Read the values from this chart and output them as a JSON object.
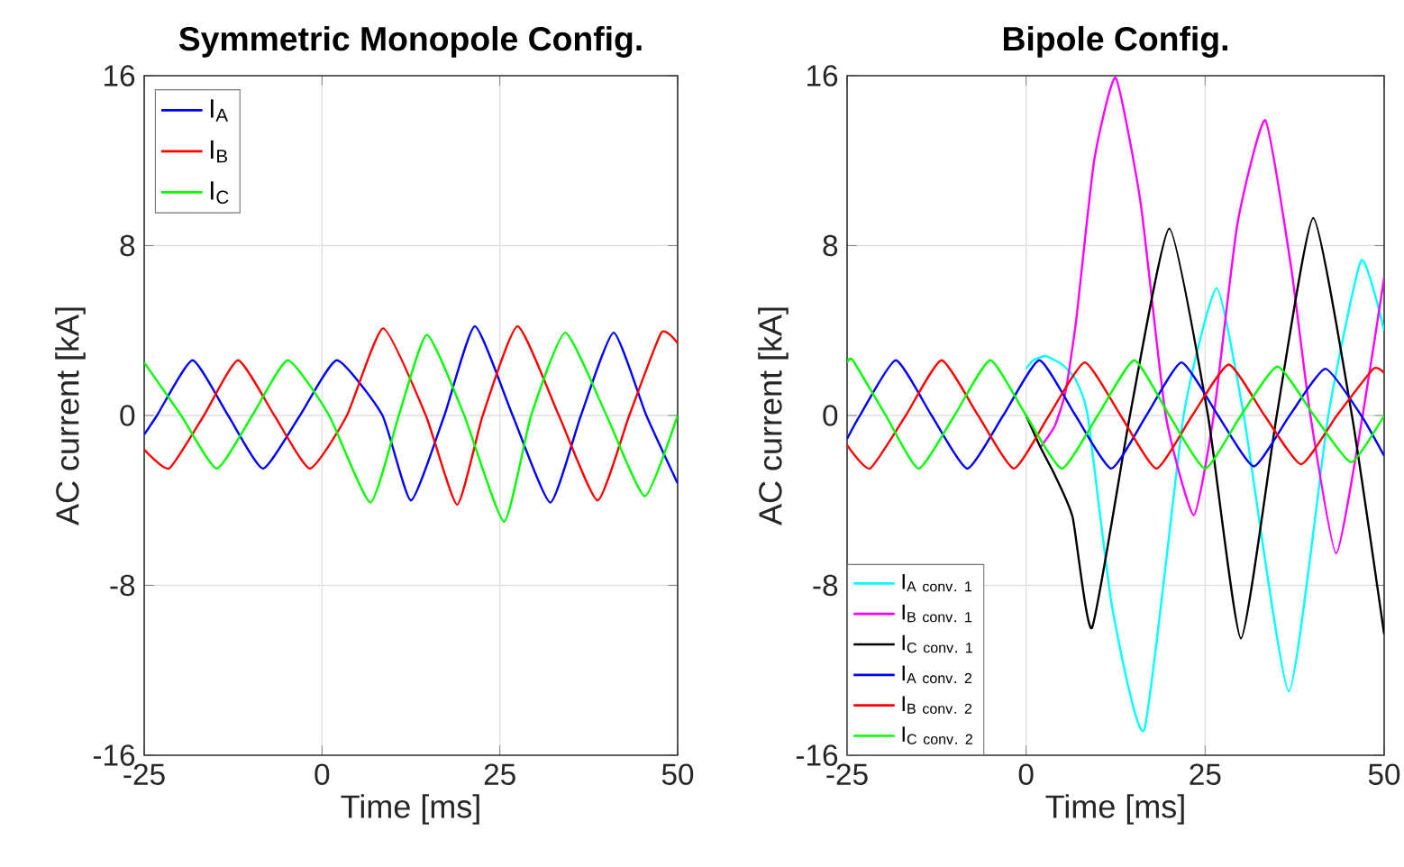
{
  "chart_data": [
    {
      "type": "line",
      "title": "Symmetric Monopole Config.",
      "xlabel": "Time [ms]",
      "ylabel": "AC current [kA]",
      "xlim": [
        -25,
        50
      ],
      "ylim": [
        -16,
        16
      ],
      "xticks": [
        -25,
        0,
        25,
        50
      ],
      "yticks": [
        -16,
        -8,
        0,
        8,
        16
      ],
      "grid": true,
      "legend": "top left",
      "series": [
        {
          "name": "I$_{A}$",
          "color": "#0000ff",
          "x": [
            -25,
            -23.2,
            -18.2,
            -13.2,
            -8.3,
            -3.1,
            2.1,
            8.5,
            12.5,
            17.2,
            21.5,
            26.8,
            32.1,
            36.4,
            41,
            45.6,
            50
          ],
          "values": [
            -0.9,
            0,
            2.6,
            0,
            -2.5,
            0,
            2.6,
            0,
            -4,
            0,
            4.2,
            0,
            -4.1,
            0,
            3.9,
            0,
            -3.2
          ]
        },
        {
          "name": "I$_{B}$",
          "color": "#ff0000",
          "x": [
            -25,
            -21.5,
            -16.6,
            -11.8,
            -6.7,
            -1.7,
            3.5,
            8.6,
            14.6,
            19,
            22.6,
            27.5,
            33.3,
            38.75,
            43.2,
            47.7,
            50
          ],
          "values": [
            -1.6,
            -2.5,
            0,
            2.6,
            0,
            -2.5,
            0,
            4.1,
            0,
            -4.2,
            0,
            4.2,
            0,
            -4,
            0,
            3.9,
            3.4
          ]
        },
        {
          "name": "I$_{C}$",
          "color": "#00ff00",
          "x": [
            -25,
            -19.8,
            -14.8,
            -9.8,
            -4.8,
            1,
            6.8,
            10.8,
            14.75,
            20,
            25.6,
            29.4,
            34.2,
            40,
            45.4,
            50
          ],
          "values": [
            2.5,
            0,
            -2.5,
            0,
            2.6,
            0,
            -4.1,
            0,
            3.8,
            0,
            -5,
            0,
            3.9,
            0,
            -3.8,
            0
          ]
        }
      ]
    },
    {
      "type": "line",
      "title": "Bipole Config.",
      "xlabel": "Time [ms]",
      "ylabel": "AC current [kA]",
      "xlim": [
        -25,
        50
      ],
      "ylim": [
        -16,
        16
      ],
      "xticks": [
        -25,
        0,
        25,
        50
      ],
      "yticks": [
        -16,
        -8,
        0,
        8,
        16
      ],
      "grid": true,
      "legend": "bottom left",
      "series": [
        {
          "name": "\\mathrm{I}_{\\mathrm{A\\ conv.\\ 1}}",
          "color": "#00ffff",
          "x": [
            0,
            1,
            2.7,
            5,
            6.9,
            8.6,
            12,
            16.5,
            22,
            26.6,
            30.4,
            36.7,
            42.2,
            46.8,
            50
          ],
          "values": [
            2.2,
            2.6,
            2.8,
            2.4,
            1.7,
            0,
            -9,
            -14.8,
            0,
            6,
            0,
            -13,
            0,
            7.3,
            4
          ]
        },
        {
          "name": "\\mathrm{I}_{\\mathrm{B\\ conv.\\ 1}}",
          "color": "#ff00ff",
          "x": [
            2,
            4,
            5.5,
            7,
            9.5,
            12.5,
            16,
            19.5,
            23.4,
            26.2,
            29.5,
            33.4,
            37,
            39.7,
            43.3,
            47,
            50
          ],
          "values": [
            -1.5,
            -0.5,
            1.1,
            4.5,
            12,
            15.9,
            10,
            0,
            -4.7,
            0,
            9,
            13.9,
            7,
            0,
            -6.5,
            0,
            6.5
          ]
        },
        {
          "name": "\\mathrm{I}_{\\mathrm{C\\ conv.\\ 1}}",
          "color": "#000000",
          "x": [
            0,
            2,
            4,
            6.5,
            9.2,
            14.5,
            20,
            25.4,
            30,
            35,
            40.1,
            45.5,
            50
          ],
          "values": [
            0,
            -1.5,
            -2.8,
            -4.8,
            -10,
            0,
            8.8,
            0,
            -10.5,
            0,
            9.3,
            0,
            -10.3
          ]
        },
        {
          "name": "\\mathrm{I}_{\\mathrm{A\\ conv.\\ 2}}",
          "color": "#0000ff",
          "x": [
            -25,
            -23.2,
            -18.2,
            -13.2,
            -8.2,
            -3.2,
            1.85,
            6.9,
            11.9,
            16.8,
            21.7,
            26.8,
            31.8,
            36.8,
            41.8,
            46.8,
            50
          ],
          "values": [
            -1.1,
            0,
            2.6,
            0,
            -2.5,
            0,
            2.6,
            0,
            -2.5,
            0,
            2.5,
            0,
            -2.4,
            0,
            2.2,
            0,
            -1.9
          ]
        },
        {
          "name": "\\mathrm{I}_{\\mathrm{B\\ conv.\\ 2}}",
          "color": "#ff0000",
          "x": [
            -25,
            -21.8,
            -16.8,
            -11.8,
            -6.7,
            -1.7,
            3.2,
            8.2,
            13.2,
            18.2,
            23.2,
            28.3,
            33.3,
            38.4,
            43.4,
            48.5,
            50
          ],
          "values": [
            -1.4,
            -2.5,
            0,
            2.6,
            0,
            -2.5,
            0,
            2.5,
            0,
            -2.5,
            0,
            2.4,
            0,
            -2.3,
            0,
            2.2,
            2
          ]
        },
        {
          "name": "\\mathrm{I}_{\\mathrm{C\\ conv.\\ 2}}",
          "color": "#00ff00",
          "x": [
            -25,
            -24.2,
            -19.6,
            -15,
            -10,
            -5,
            0,
            5,
            10,
            15.1,
            20,
            25,
            30,
            35.1,
            40.2,
            45.4,
            50
          ],
          "values": [
            2.5,
            2.6,
            0,
            -2.5,
            0,
            2.6,
            0,
            -2.5,
            0,
            2.6,
            0,
            -2.5,
            0,
            2.3,
            0,
            -2.2,
            0
          ]
        }
      ]
    }
  ]
}
